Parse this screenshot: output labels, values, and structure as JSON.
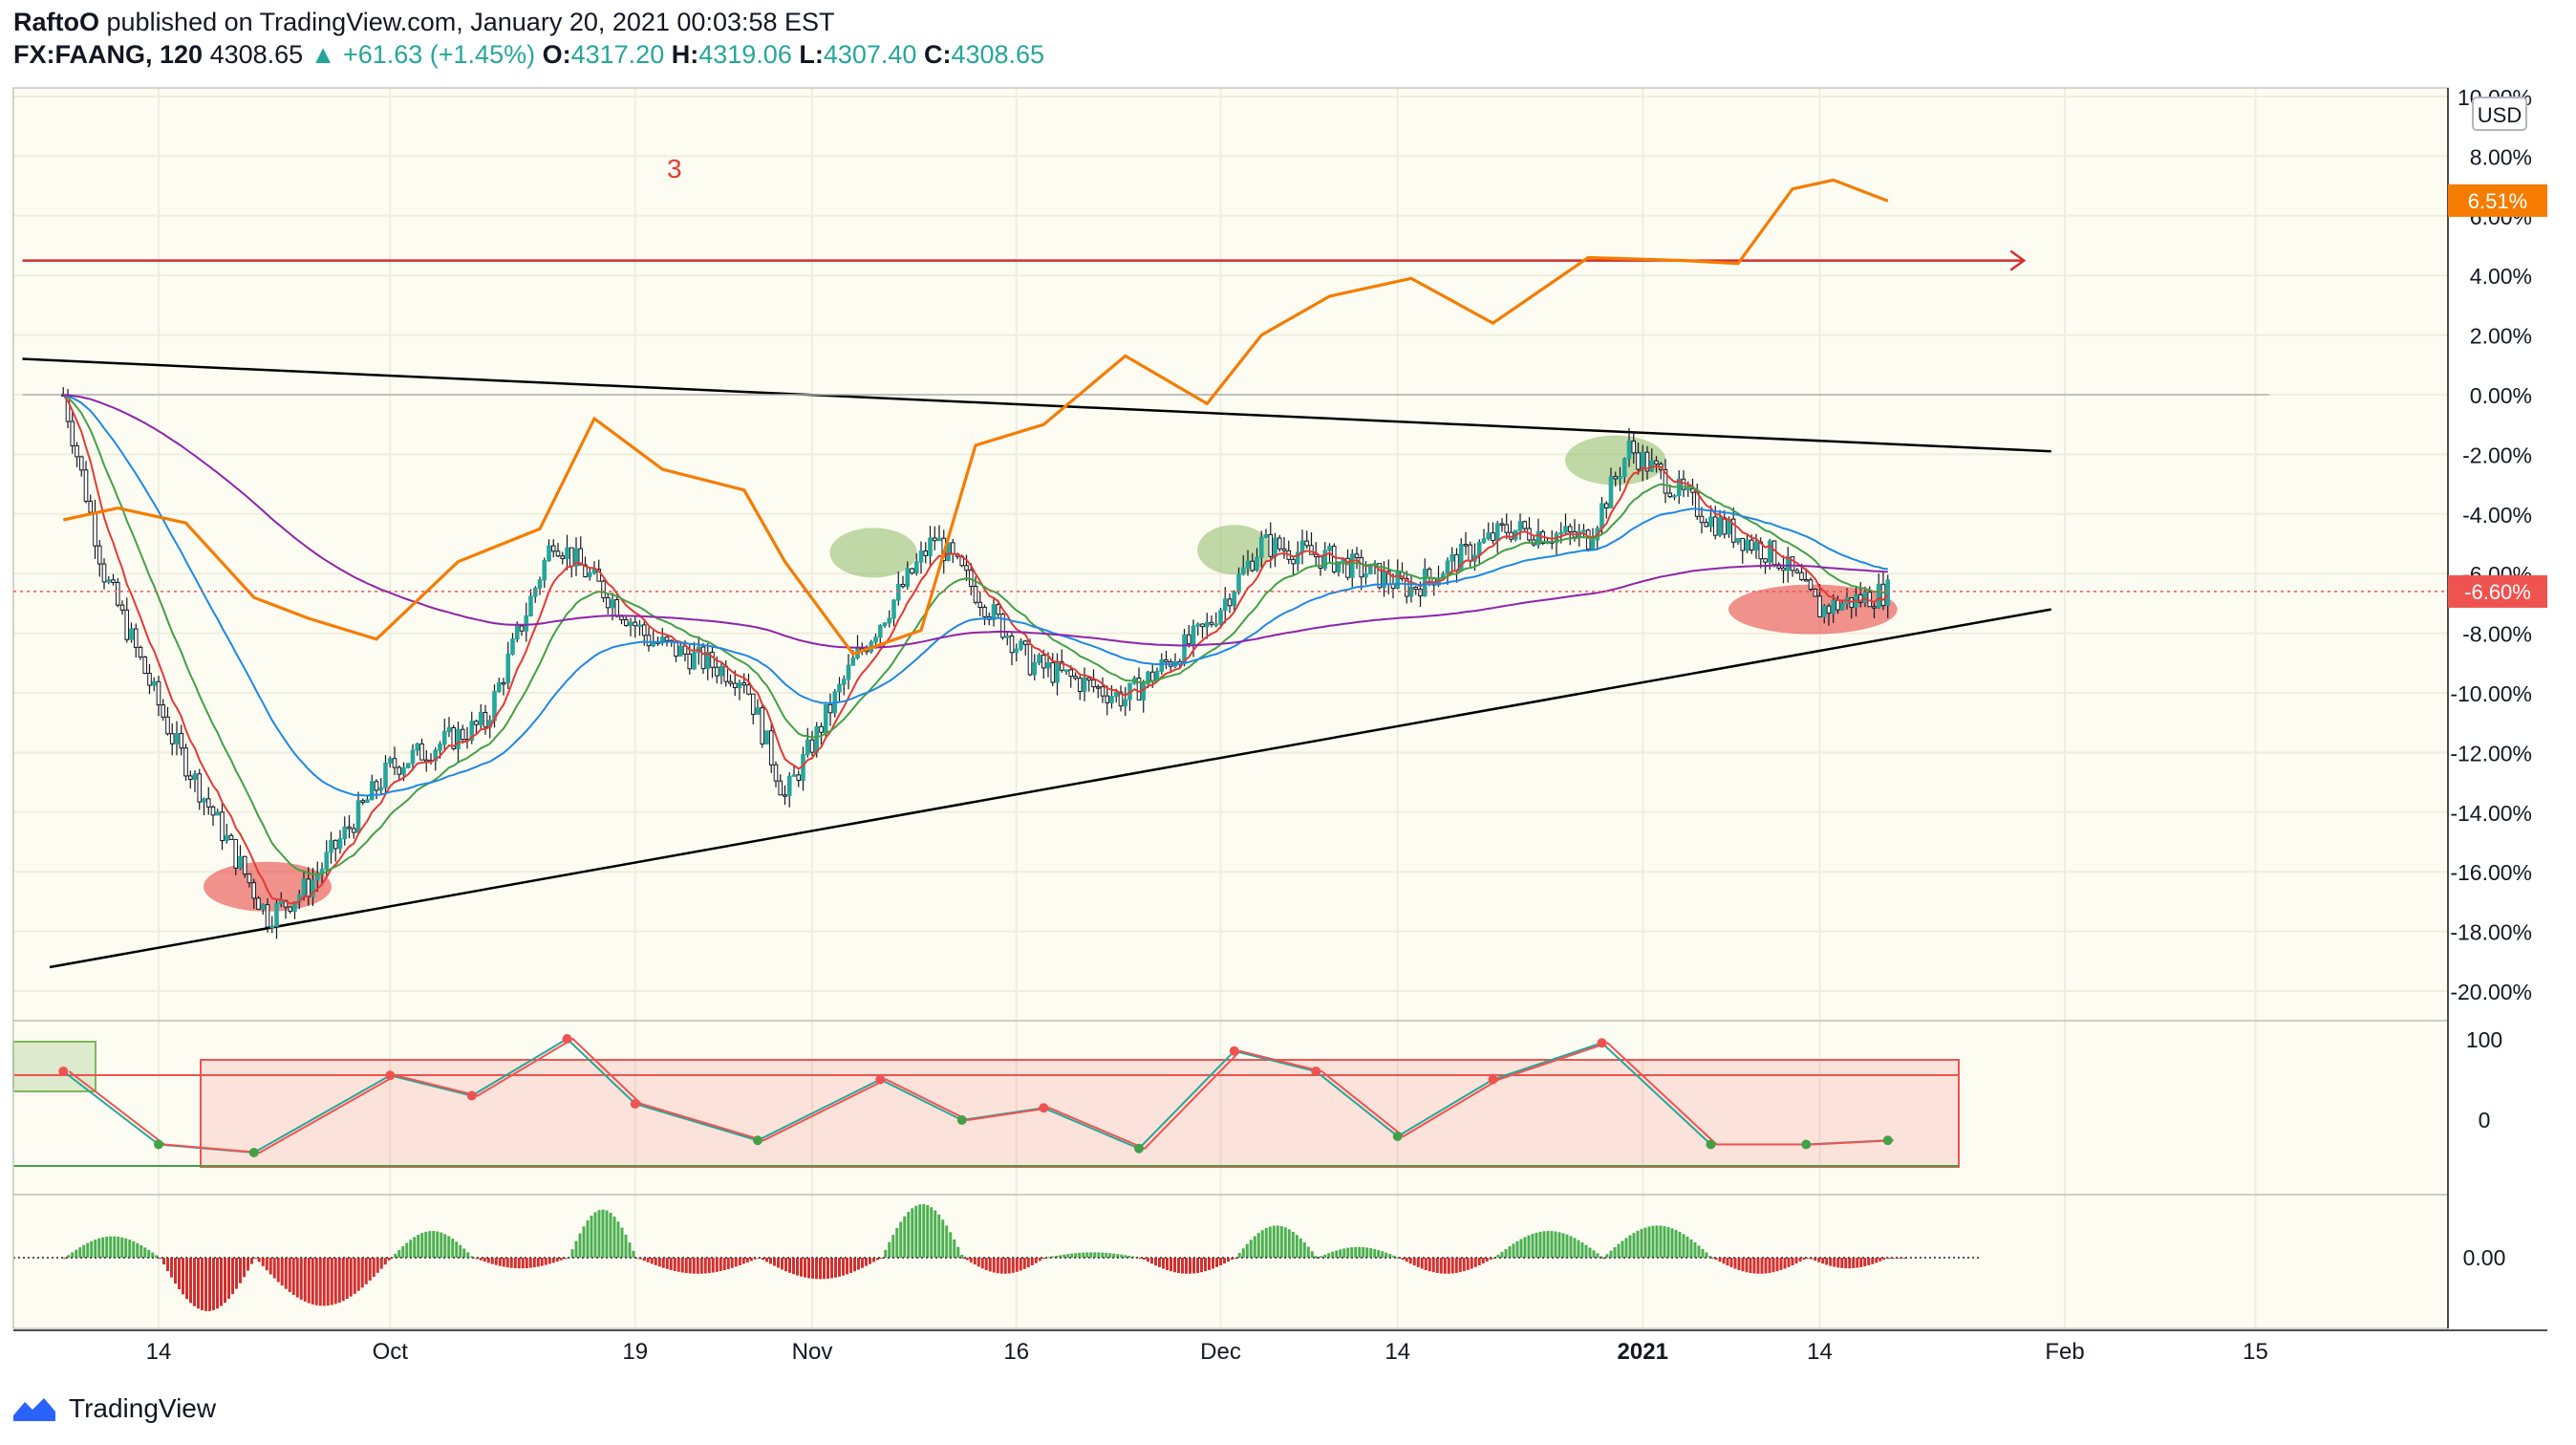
{
  "header": {
    "author": "RaftoO",
    "published_text": "published on TradingView.com, January 20, 2021 00:03:58 EST",
    "symbol": "FX:FAANG, 120",
    "last": "4308.65",
    "arrow": "▲",
    "change": "+61.63 (+1.45%)",
    "open_label": "O:",
    "open": "4317.20",
    "high_label": "H:",
    "high": "4319.06",
    "low_label": "L:",
    "low": "4307.40",
    "close_label": "C:",
    "close": "4308.65"
  },
  "footer": {
    "brand": "TradingView"
  },
  "annotation_label": "3",
  "currency_badge": "USD",
  "colors": {
    "background": "#fdfcf3",
    "up": "#26a69a",
    "down": "#ef5350",
    "compare_line": "#f57c00",
    "ema_fast": "#e53935",
    "ema_mid": "#43a047",
    "ema_slow": "#1e88e5",
    "ema_long": "#8e24aa",
    "trendline": "#000000",
    "resistance_line": "#d32f2f"
  },
  "chart_data": [
    {
      "type": "line",
      "title": "FX:FAANG, 120 — percent scale with comparison symbol",
      "y_unit": "%",
      "ylim": [
        -21,
        10
      ],
      "y_ticks": [
        "10.00%",
        "8.00%",
        "6.00%",
        "4.00%",
        "2.00%",
        "0.00%",
        "-2.00%",
        "-4.00%",
        "-6.00%",
        "-8.00%",
        "-10.00%",
        "-12.00%",
        "-14.00%",
        "-16.00%",
        "-18.00%",
        "-20.00%"
      ],
      "x_ticks": [
        "14",
        "Oct",
        "19",
        "Nov",
        "16",
        "Dec",
        "14",
        "2021",
        "14",
        "Feb",
        "15"
      ],
      "price_badges": [
        {
          "label": "6.51%",
          "value": 6.51,
          "color": "#f57c00"
        },
        {
          "label": "-6.60%",
          "value": -6.6,
          "color": "#ef5350"
        }
      ],
      "series": [
        {
          "name": "Comparison symbol",
          "color": "#f57c00",
          "x": [
            "2020-09-07",
            "2020-09-11",
            "2020-09-16",
            "2020-09-21",
            "2020-09-25",
            "2020-09-30",
            "2020-10-06",
            "2020-10-12",
            "2020-10-16",
            "2020-10-21",
            "2020-10-27",
            "2020-10-30",
            "2020-11-04",
            "2020-11-09",
            "2020-11-13",
            "2020-11-18",
            "2020-11-24",
            "2020-11-30",
            "2020-12-04",
            "2020-12-09",
            "2020-12-15",
            "2020-12-21",
            "2020-12-28",
            "2021-01-04",
            "2021-01-08",
            "2021-01-12",
            "2021-01-15",
            "2021-01-19"
          ],
          "y": [
            -4.2,
            -3.8,
            -4.3,
            -6.8,
            -7.5,
            -8.2,
            -5.6,
            -4.5,
            -0.8,
            -2.5,
            -3.2,
            -5.6,
            -8.7,
            -7.9,
            -1.7,
            -1.0,
            1.3,
            -0.3,
            2.0,
            3.3,
            3.9,
            2.4,
            4.6,
            4.5,
            4.4,
            6.9,
            7.2,
            6.5
          ]
        },
        {
          "name": "FAANG",
          "color": "#26a69a",
          "x": [
            "2020-09-07",
            "2020-09-10",
            "2020-09-15",
            "2020-09-22",
            "2020-09-25",
            "2020-10-01",
            "2020-10-08",
            "2020-10-13",
            "2020-10-20",
            "2020-10-27",
            "2020-10-30",
            "2020-11-04",
            "2020-11-10",
            "2020-11-17",
            "2020-11-24",
            "2020-11-30",
            "2020-12-04",
            "2020-12-09",
            "2020-12-15",
            "2020-12-22",
            "2020-12-28",
            "2020-12-31",
            "2021-01-06",
            "2021-01-11",
            "2021-01-14",
            "2021-01-19"
          ],
          "y": [
            0.0,
            -6.0,
            -11.5,
            -17.5,
            -16.5,
            -12.5,
            -11.0,
            -4.8,
            -8.2,
            -9.5,
            -13.5,
            -9.0,
            -4.8,
            -9.0,
            -10.2,
            -7.8,
            -5.0,
            -5.5,
            -6.5,
            -4.5,
            -4.8,
            -1.8,
            -4.2,
            -5.5,
            -7.2,
            -6.6
          ]
        }
      ],
      "trendlines": [
        {
          "name": "upper",
          "from": [
            "2020-09-04",
            1.2
          ],
          "to": [
            "2021-01-31",
            -1.9
          ]
        },
        {
          "name": "lower",
          "from": [
            "2020-09-06",
            -19.2
          ],
          "to": [
            "2021-01-31",
            -7.2
          ]
        },
        {
          "name": "horizontal",
          "from": [
            "2020-09-04",
            4.5
          ],
          "to": [
            "2021-01-29",
            4.5
          ]
        },
        {
          "name": "zero",
          "from": [
            "2020-09-04",
            0.0
          ],
          "to": [
            "2021-02-16",
            0.0
          ]
        }
      ]
    },
    {
      "type": "line",
      "title": "Oscillator",
      "y_ticks": [
        "100",
        "0"
      ],
      "ylim": [
        -50,
        110
      ],
      "x": [
        "2020-09-07",
        "2020-09-14",
        "2020-09-21",
        "2020-10-01",
        "2020-10-07",
        "2020-10-14",
        "2020-10-19",
        "2020-10-28",
        "2020-11-06",
        "2020-11-12",
        "2020-11-18",
        "2020-11-25",
        "2020-12-02",
        "2020-12-08",
        "2020-12-14",
        "2020-12-21",
        "2020-12-29",
        "2021-01-06",
        "2021-01-13",
        "2021-01-19"
      ],
      "y": [
        60,
        -30,
        -40,
        55,
        30,
        100,
        20,
        -25,
        50,
        0,
        15,
        -35,
        85,
        60,
        -20,
        50,
        95,
        -30,
        -30,
        -25
      ]
    },
    {
      "type": "bar",
      "title": "Histogram",
      "y_ticks": [
        "0.00"
      ],
      "x": [
        "2020-09-07",
        "2020-09-14",
        "2020-09-21",
        "2020-10-01",
        "2020-10-07",
        "2020-10-14",
        "2020-10-19",
        "2020-10-28",
        "2020-11-06",
        "2020-11-12",
        "2020-11-18",
        "2020-11-25",
        "2020-12-02",
        "2020-12-08",
        "2020-12-14",
        "2020-12-21",
        "2020-12-29",
        "2021-01-06",
        "2021-01-13",
        "2021-01-19"
      ],
      "values": [
        0.4,
        -1.0,
        -0.9,
        0.5,
        -0.2,
        0.9,
        -0.3,
        -0.4,
        1.0,
        -0.3,
        0.1,
        -0.3,
        0.6,
        0.2,
        -0.3,
        0.5,
        0.6,
        -0.3,
        -0.2,
        0.0
      ]
    }
  ]
}
